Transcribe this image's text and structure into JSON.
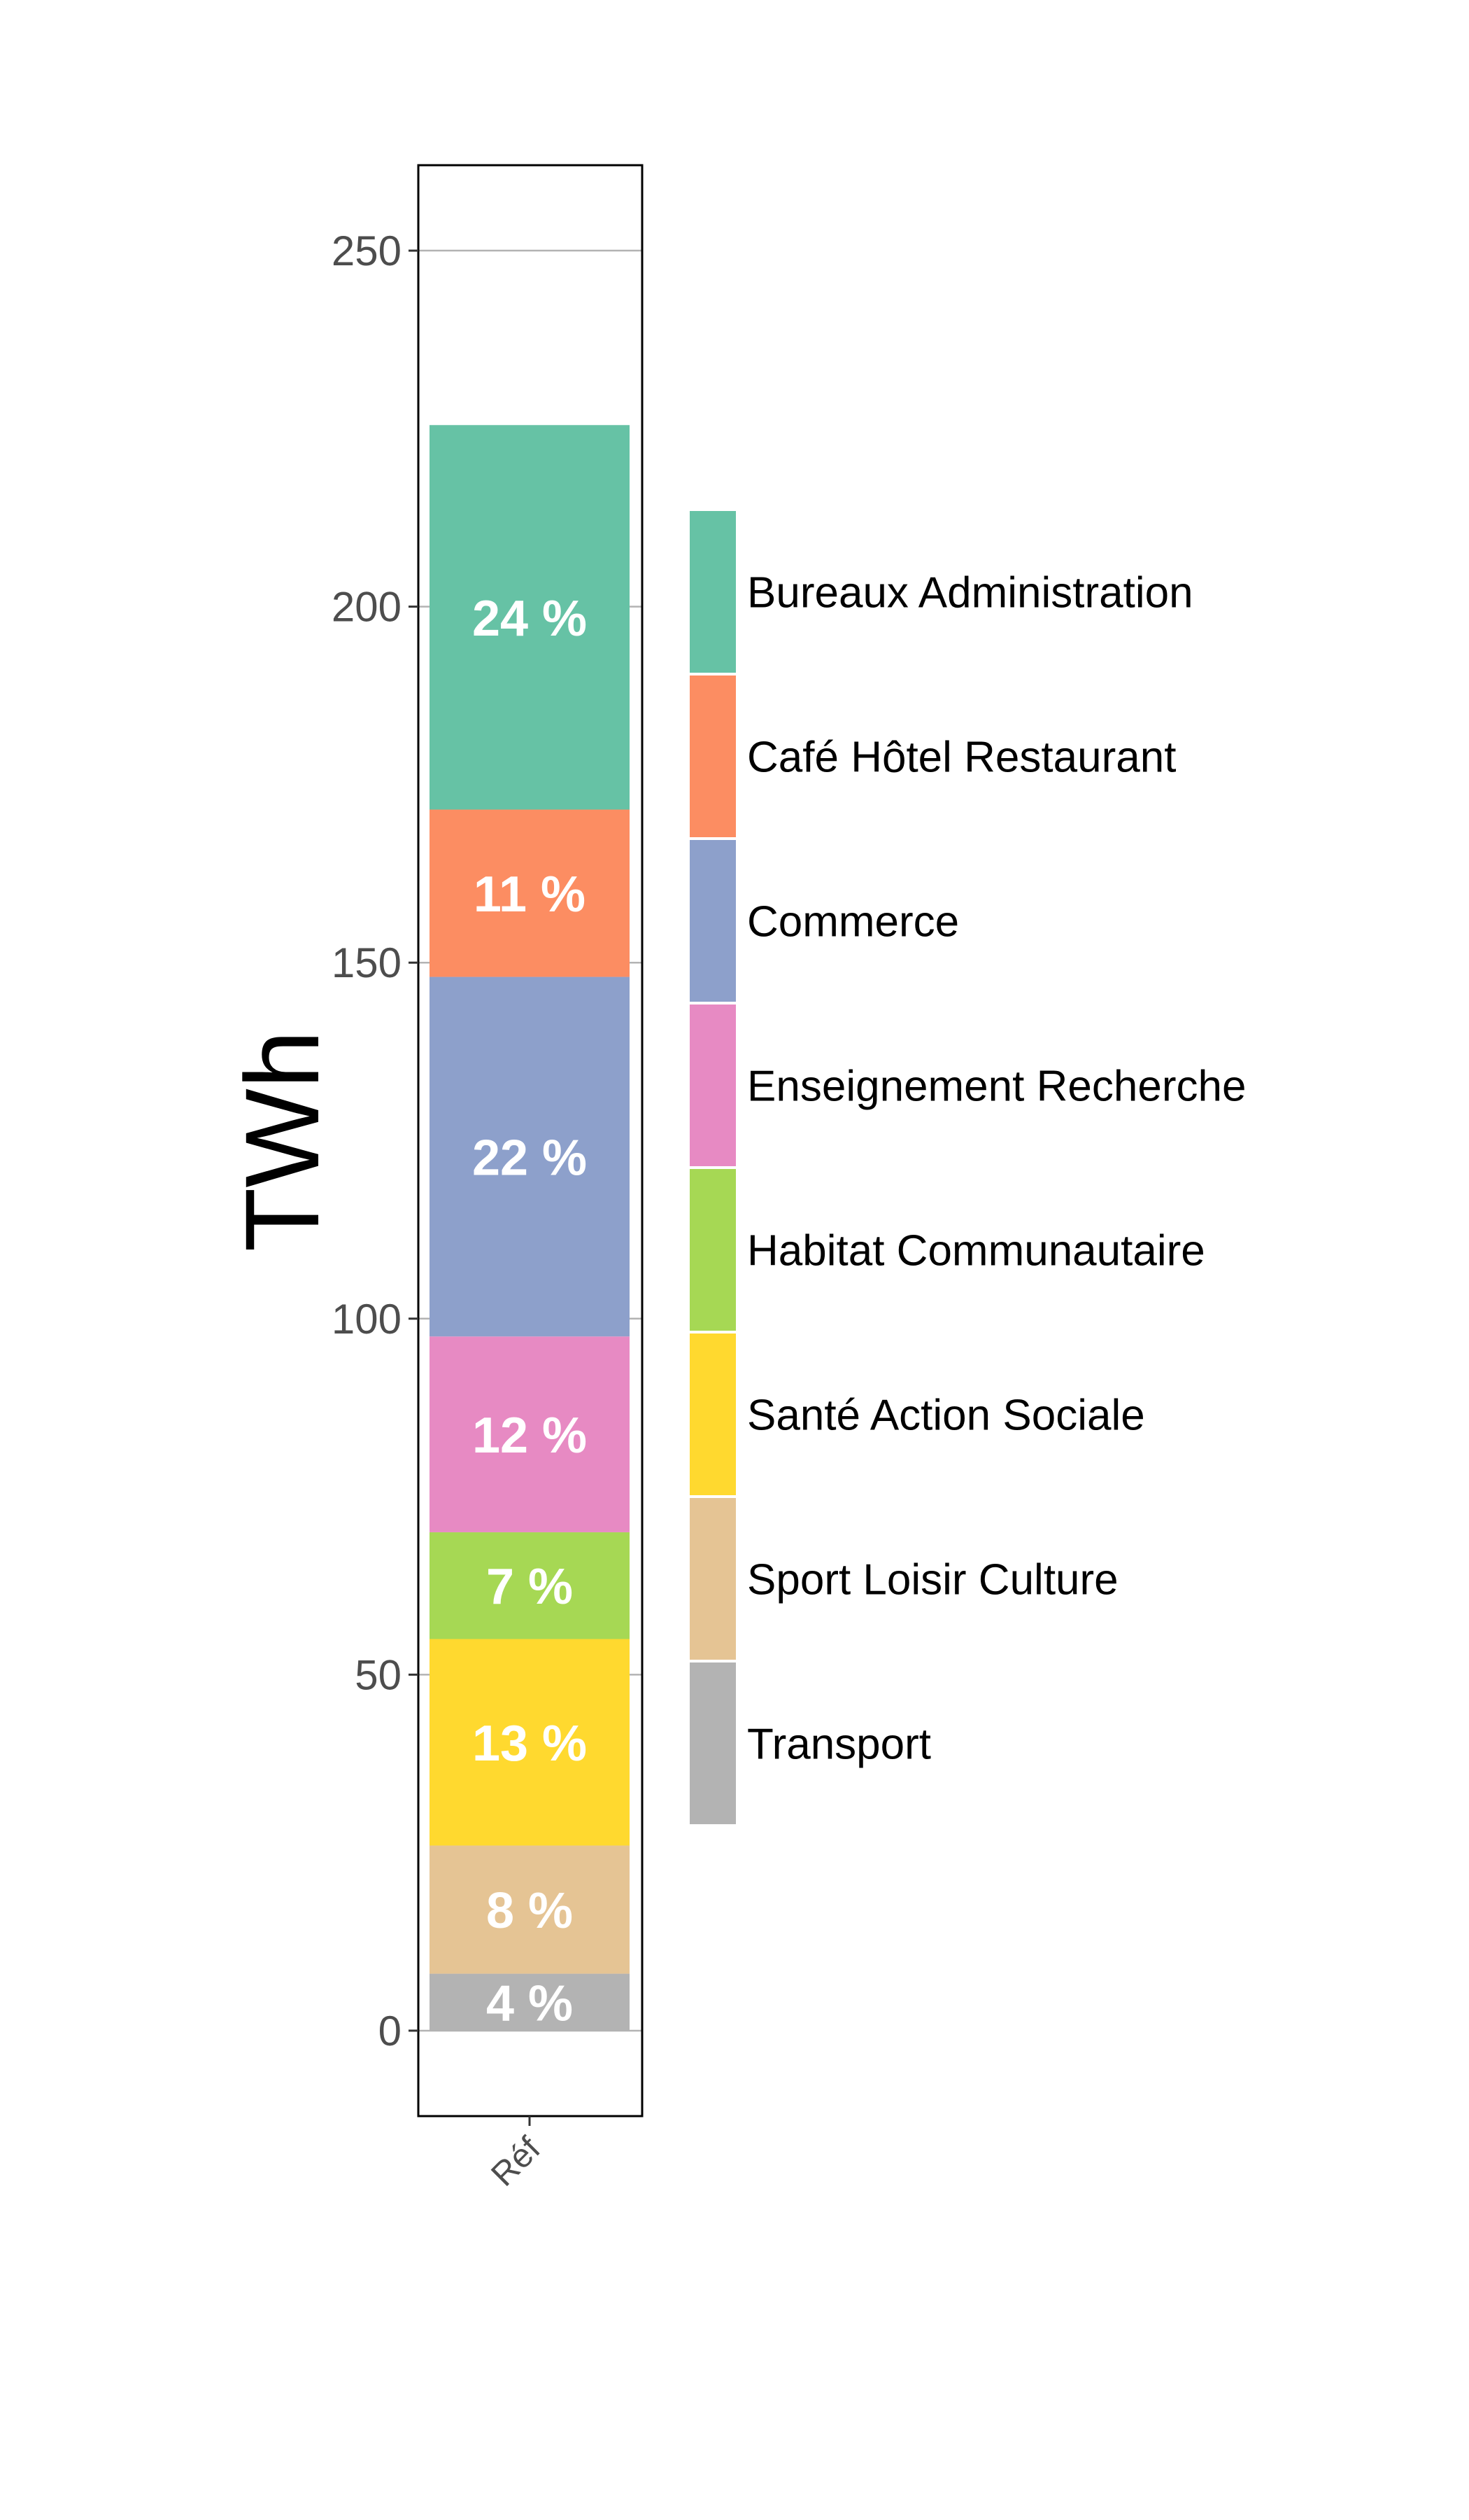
{
  "chart_data": {
    "type": "bar",
    "stacked": true,
    "categories": [
      "Réf"
    ],
    "ylabel": "TWh",
    "xlabel": "",
    "ylim": [
      -12,
      262
    ],
    "yticks": [
      0,
      50,
      100,
      150,
      200,
      250
    ],
    "grid": "horizontal major lines",
    "legend_position": "right",
    "series": [
      {
        "name": "Transport",
        "value": 8,
        "label": "4 %",
        "color": "#b3b3b3"
      },
      {
        "name": "Sport Loisir Culture",
        "value": 18,
        "label": "8 %",
        "color": "#e5c494"
      },
      {
        "name": "Santé Action Sociale",
        "value": 29,
        "label": "13 %",
        "color": "#ffd92f"
      },
      {
        "name": "Habitat Communautaire",
        "value": 15,
        "label": "7 %",
        "color": "#a6d854"
      },
      {
        "name": "Enseignement Recherche",
        "value": 27.5,
        "label": "12 %",
        "color": "#e78ac3"
      },
      {
        "name": "Commerce",
        "value": 50.5,
        "label": "22 %",
        "color": "#8da0cb"
      },
      {
        "name": "Café Hôtel Restaurant",
        "value": 23.5,
        "label": "11 %",
        "color": "#fc8d62"
      },
      {
        "name": "Bureaux Administration",
        "value": 54,
        "label": "24 %",
        "color": "#66c2a5"
      }
    ],
    "legend_order": [
      "Bureaux Administration",
      "Café Hôtel Restaurant",
      "Commerce",
      "Enseignement Recherche",
      "Habitat Communautaire",
      "Santé Action Sociale",
      "Sport Loisir Culture",
      "Transport"
    ]
  }
}
